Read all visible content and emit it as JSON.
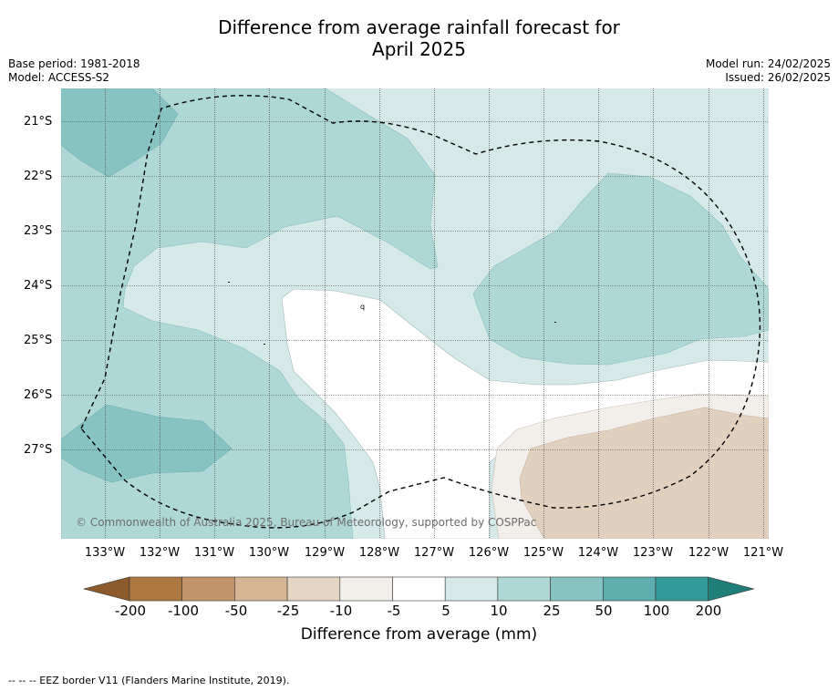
{
  "header": {
    "title_line1": "Difference from average rainfall forecast for",
    "title_line2": "April 2025",
    "base_period": "Base period: 1981-2018",
    "model": "Model: ACCESS-S2",
    "model_run": "Model run: 24/02/2025",
    "issued": "Issued: 26/02/2025"
  },
  "map": {
    "lat_labels": [
      "21°S",
      "22°S",
      "23°S",
      "24°S",
      "25°S",
      "26°S",
      "27°S"
    ],
    "lon_labels": [
      "133°W",
      "132°W",
      "131°W",
      "130°W",
      "129°W",
      "128°W",
      "127°W",
      "126°W",
      "125°W",
      "124°W",
      "123°W",
      "122°W",
      "121°W"
    ],
    "small_marker_label": "q",
    "copyright": "© Commonwealth of Australia 2025, Bureau of Meteorology, supported by COSPPac"
  },
  "colorbar": {
    "ticks": [
      "-200",
      "-100",
      "-50",
      "-25",
      "-10",
      "-5",
      "5",
      "10",
      "25",
      "50",
      "100",
      "200"
    ],
    "colors": [
      "#8c5a2b",
      "#ad7840",
      "#c2956b",
      "#d6b595",
      "#e6d4c2",
      "#f2eee9",
      "#ffffff",
      "#d4e9e8",
      "#aed7d6",
      "#86c3c2",
      "#5daeae",
      "#339b97",
      "#1f7e7a"
    ],
    "title": "Difference from average (mm)"
  },
  "footnote": "--  --  -- EEZ border V11 (Flanders Marine Institute, 2019)."
}
